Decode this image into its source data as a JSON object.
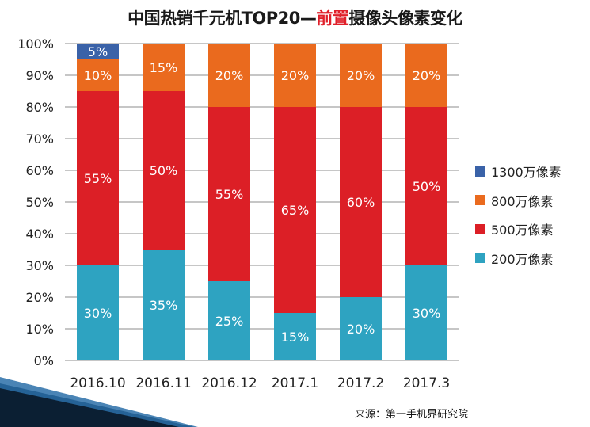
{
  "title_prefix": "中国热销千元机TOP20—",
  "title_highlight": "前置",
  "title_suffix": "摄像头像素变化",
  "source": "来源：第一手机界研究院",
  "chart_data": {
    "type": "bar",
    "stacked": true,
    "title": "中国热销千元机TOP20—前置摄像头像素变化",
    "categories": [
      "2016.10",
      "2016.11",
      "2016.12",
      "2017.1",
      "2017.2",
      "2017.3"
    ],
    "ylim": [
      0,
      100
    ],
    "yticks": [
      "0%",
      "10%",
      "20%",
      "30%",
      "40%",
      "50%",
      "60%",
      "70%",
      "80%",
      "90%",
      "100%"
    ],
    "grid": true,
    "legend_position": "right",
    "series": [
      {
        "name": "200万像素",
        "color": "#2ea3c1",
        "values": [
          30,
          35,
          25,
          15,
          20,
          30
        ]
      },
      {
        "name": "500万像素",
        "color": "#dc1f26",
        "values": [
          55,
          50,
          55,
          65,
          60,
          50
        ]
      },
      {
        "name": "800万像素",
        "color": "#ea6a1e",
        "values": [
          10,
          15,
          20,
          20,
          20,
          20
        ]
      },
      {
        "name": "1300万像素",
        "color": "#3a62a8",
        "values": [
          5,
          0,
          0,
          0,
          0,
          0
        ]
      }
    ]
  }
}
